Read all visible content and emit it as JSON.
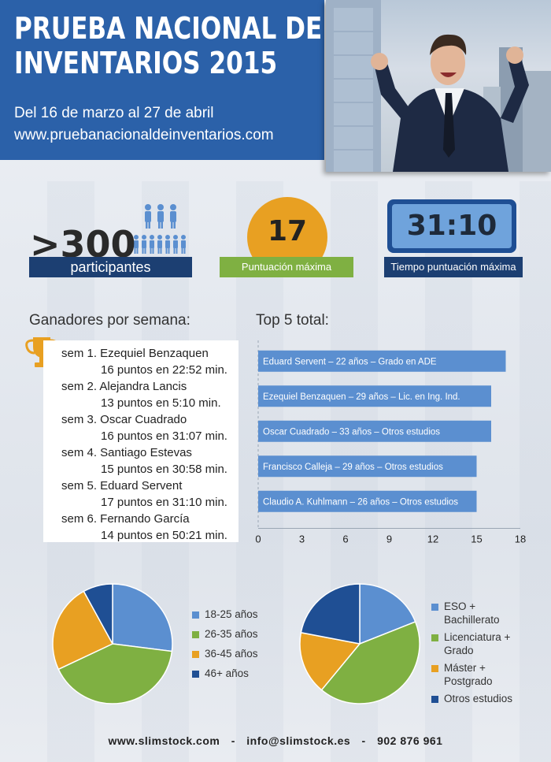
{
  "header": {
    "title_line1": "PRUEBA NACIONAL DE",
    "title_line2": "INVENTARIOS 2015",
    "subtitle": "Del 16 de marzo al 27 de abril",
    "url": "www.pruebanacionaldeinventarios.com"
  },
  "stats": {
    "participants_value": ">300",
    "participants_label": "participantes",
    "max_score_value": "17",
    "max_score_label": "Puntuación máxima",
    "max_time_value": "31:10",
    "max_time_label": "Tiempo puntuación máxima"
  },
  "winners": {
    "title": "Ganadores por semana:",
    "lines": [
      "sem 1. Ezequiel Benzaquen",
      "16 puntos en 22:52 min.",
      "sem 2. Alejandra Lancis",
      "13 puntos en 5:10 min.",
      "sem 3. Oscar Cuadrado",
      "16 puntos en 31:07 min.",
      "sem 4. Santiago Estevas",
      "15 puntos en 30:58 min.",
      "sem 5. Eduard Servent",
      "17 puntos en 31:10 min.",
      "sem 6. Fernando García",
      "14 puntos en 50:21 min."
    ]
  },
  "top5_title": "Top 5 total:",
  "chart_data": [
    {
      "type": "bar",
      "orientation": "horizontal",
      "title": "Top 5 total:",
      "categories": [
        "Eduard Servent – 22 años – Grado en ADE",
        "Ezequiel Benzaquen – 29 años – Lic. en Ing. Ind.",
        "Oscar Cuadrado – 33 años – Otros estudios",
        "Francisco Calleja – 29 años – Otros estudios",
        "Claudio A. Kuhlmann – 26 años – Otros estudios"
      ],
      "values": [
        17,
        16,
        16,
        15,
        15
      ],
      "xlim": [
        0,
        18
      ],
      "xticks": [
        "0",
        "3",
        "6",
        "9",
        "12",
        "15",
        "18"
      ],
      "color": "#5b8fd0"
    },
    {
      "type": "pie",
      "labels": [
        "18-25 años",
        "26-35 años",
        "36-45 años",
        "46+ años"
      ],
      "values": [
        27,
        41,
        24,
        8
      ],
      "colors": [
        "#5b8fd0",
        "#7fb042",
        "#e8a022",
        "#1f4f94"
      ],
      "legend": "right"
    },
    {
      "type": "pie",
      "labels": [
        "ESO + Bachillerato",
        "Licenciatura + Grado",
        "Máster + Postgrado",
        "Otros estudios"
      ],
      "legend_lines": [
        [
          "ESO +",
          "Bachillerato"
        ],
        [
          "Licenciatura +",
          "Grado"
        ],
        [
          "Máster +",
          "Postgrado"
        ],
        [
          "Otros estudios"
        ]
      ],
      "values": [
        19,
        42,
        17,
        22
      ],
      "colors": [
        "#5b8fd0",
        "#7fb042",
        "#e8a022",
        "#1f4f94"
      ],
      "legend": "right"
    }
  ],
  "footer": {
    "website": "www.slimstock.com",
    "email": "info@slimstock.es",
    "phone": "902 876 961",
    "separator": "-"
  }
}
